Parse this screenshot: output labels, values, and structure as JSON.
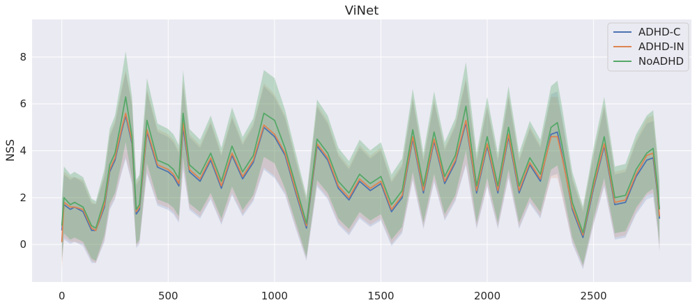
{
  "chart_data": {
    "type": "line",
    "title": "ViNet",
    "xlabel": "",
    "ylabel": "NSS",
    "xlim": [
      -140,
      2960
    ],
    "ylim": [
      -1.6,
      9.6
    ],
    "xticks": [
      0,
      500,
      1000,
      1500,
      2000,
      2500
    ],
    "yticks": [
      0,
      2,
      4,
      6,
      8
    ],
    "grid": true,
    "legend_position": "top-right",
    "series": [
      {
        "name": "ADHD-C",
        "color": "#4c72b0",
        "x": [
          0,
          10,
          40,
          60,
          100,
          140,
          160,
          200,
          225,
          250,
          280,
          300,
          330,
          350,
          365,
          400,
          450,
          500,
          525,
          550,
          570,
          600,
          650,
          700,
          750,
          800,
          850,
          900,
          950,
          1000,
          1050,
          1100,
          1150,
          1200,
          1250,
          1300,
          1350,
          1400,
          1450,
          1500,
          1550,
          1600,
          1650,
          1700,
          1750,
          1800,
          1850,
          1900,
          1950,
          2000,
          2050,
          2100,
          2150,
          2200,
          2250,
          2300,
          2330,
          2350,
          2400,
          2450,
          2500,
          2550,
          2600,
          2650,
          2700,
          2750,
          2780,
          2800,
          2810
        ],
        "values": [
          0.6,
          1.7,
          1.5,
          1.6,
          1.4,
          0.6,
          0.6,
          1.6,
          3.1,
          3.6,
          4.8,
          5.5,
          4.3,
          1.3,
          1.5,
          4.8,
          3.3,
          3.1,
          2.9,
          2.5,
          5.0,
          3.1,
          2.7,
          3.6,
          2.4,
          3.8,
          2.8,
          3.5,
          5.0,
          4.6,
          3.8,
          2.2,
          0.7,
          4.2,
          3.6,
          2.4,
          1.9,
          2.7,
          2.3,
          2.6,
          1.4,
          2.0,
          4.5,
          2.2,
          4.4,
          2.6,
          3.5,
          5.2,
          2.2,
          4.2,
          2.2,
          4.6,
          2.2,
          3.4,
          2.7,
          4.7,
          4.8,
          3.9,
          1.5,
          0.3,
          2.4,
          4.2,
          1.7,
          1.8,
          2.9,
          3.6,
          3.7,
          2.2,
          1.1
        ]
      },
      {
        "name": "ADHD-IN",
        "color": "#dd8452",
        "x": [
          0,
          10,
          40,
          60,
          100,
          140,
          160,
          200,
          225,
          250,
          280,
          300,
          330,
          350,
          365,
          400,
          450,
          500,
          525,
          550,
          570,
          600,
          650,
          700,
          750,
          800,
          850,
          900,
          950,
          1000,
          1050,
          1100,
          1150,
          1200,
          1250,
          1300,
          1350,
          1400,
          1450,
          1500,
          1550,
          1600,
          1650,
          1700,
          1750,
          1800,
          1850,
          1900,
          1950,
          2000,
          2050,
          2100,
          2150,
          2200,
          2250,
          2300,
          2330,
          2350,
          2400,
          2450,
          2500,
          2550,
          2600,
          2650,
          2700,
          2750,
          2780,
          2800,
          2810
        ],
        "values": [
          0.1,
          1.8,
          1.6,
          1.6,
          1.5,
          0.7,
          0.6,
          1.7,
          3.2,
          3.7,
          4.9,
          5.6,
          4.4,
          1.4,
          1.6,
          4.9,
          3.4,
          3.2,
          3.0,
          2.6,
          5.2,
          3.2,
          2.8,
          3.7,
          2.5,
          3.9,
          2.9,
          3.6,
          5.1,
          4.7,
          3.9,
          2.3,
          0.8,
          4.3,
          3.7,
          2.5,
          2.0,
          2.8,
          2.4,
          2.7,
          1.5,
          2.1,
          4.6,
          2.3,
          4.5,
          2.7,
          3.6,
          5.3,
          2.3,
          4.3,
          2.3,
          4.7,
          2.3,
          3.5,
          2.8,
          4.6,
          4.6,
          3.8,
          1.6,
          0.4,
          2.5,
          4.3,
          1.8,
          1.9,
          3.0,
          3.8,
          3.9,
          2.3,
          1.2
        ]
      },
      {
        "name": "NoADHD",
        "color": "#55a868",
        "x": [
          0,
          10,
          40,
          60,
          100,
          140,
          160,
          200,
          225,
          250,
          280,
          300,
          330,
          350,
          365,
          400,
          450,
          500,
          525,
          550,
          570,
          600,
          650,
          700,
          750,
          800,
          850,
          900,
          950,
          1000,
          1050,
          1100,
          1150,
          1200,
          1250,
          1300,
          1350,
          1400,
          1450,
          1500,
          1550,
          1600,
          1650,
          1700,
          1750,
          1800,
          1850,
          1900,
          1950,
          2000,
          2050,
          2100,
          2150,
          2200,
          2250,
          2300,
          2330,
          2350,
          2400,
          2450,
          2500,
          2550,
          2600,
          2650,
          2700,
          2750,
          2780,
          2800,
          2810
        ],
        "values": [
          0.8,
          2.0,
          1.7,
          1.8,
          1.6,
          0.8,
          0.7,
          1.9,
          3.4,
          3.9,
          5.3,
          6.3,
          4.6,
          1.5,
          1.7,
          5.3,
          3.6,
          3.4,
          3.2,
          2.8,
          5.6,
          3.4,
          3.0,
          3.9,
          2.7,
          4.2,
          3.1,
          3.8,
          5.6,
          5.3,
          4.1,
          2.5,
          0.9,
          4.5,
          3.9,
          2.7,
          2.2,
          3.0,
          2.6,
          2.9,
          1.7,
          2.3,
          4.9,
          2.5,
          4.8,
          2.9,
          3.8,
          5.9,
          2.5,
          4.6,
          2.5,
          5.0,
          2.5,
          3.7,
          3.0,
          5.0,
          5.2,
          4.3,
          1.8,
          0.5,
          2.7,
          4.6,
          2.0,
          2.1,
          3.2,
          3.9,
          4.1,
          2.5,
          1.5
        ]
      }
    ],
    "band_halfwidth": 1.9
  }
}
